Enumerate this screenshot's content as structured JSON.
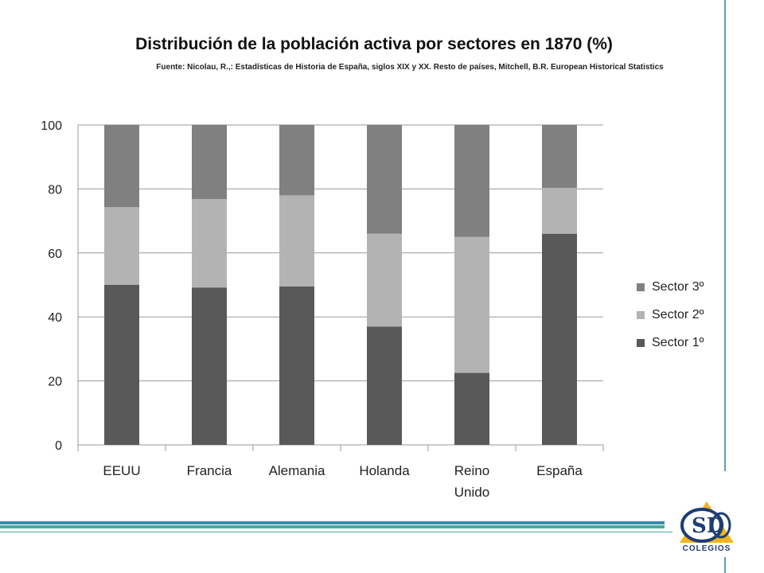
{
  "chart_data": {
    "type": "bar",
    "stacked": true,
    "title": "Distribución de la población activa por sectores en 1870 (%)",
    "subtitle": "Fuente: Nicolau, R.,: Estadísticas de Historia de España, siglos XIX y XX. Resto de países, Mitchell, B.R. European Historical Statistics",
    "categories": [
      [
        "EEUU"
      ],
      [
        "Francia"
      ],
      [
        "Alemania"
      ],
      [
        "Holanda"
      ],
      [
        "Reino",
        "Unido"
      ],
      [
        "España"
      ]
    ],
    "series": [
      {
        "name": "Sector 1º",
        "color": "#595959",
        "values": [
          50,
          49.2,
          49.5,
          37,
          22.5,
          66
        ]
      },
      {
        "name": "Sector 2º",
        "color": "#b3b3b3",
        "values": [
          24.3,
          27.6,
          28.5,
          29,
          42.5,
          14.3
        ]
      },
      {
        "name": "Sector 3º",
        "color": "#808080",
        "values": [
          25.7,
          23.2,
          22,
          34,
          35,
          19.7
        ]
      }
    ],
    "ylim": [
      0,
      100
    ],
    "yticks": [
      0,
      20,
      40,
      60,
      80,
      100
    ],
    "grid": true,
    "legend": "right"
  },
  "theme": {
    "accent": "#5c9eb8",
    "band_colors": [
      "#3a8cab",
      "#4aa8a0"
    ]
  },
  "logo": {
    "text": "COLEGIOS",
    "icon": "csd-colegios-logo-icon",
    "colors": [
      "#f5b31e",
      "#1d3e72"
    ]
  }
}
